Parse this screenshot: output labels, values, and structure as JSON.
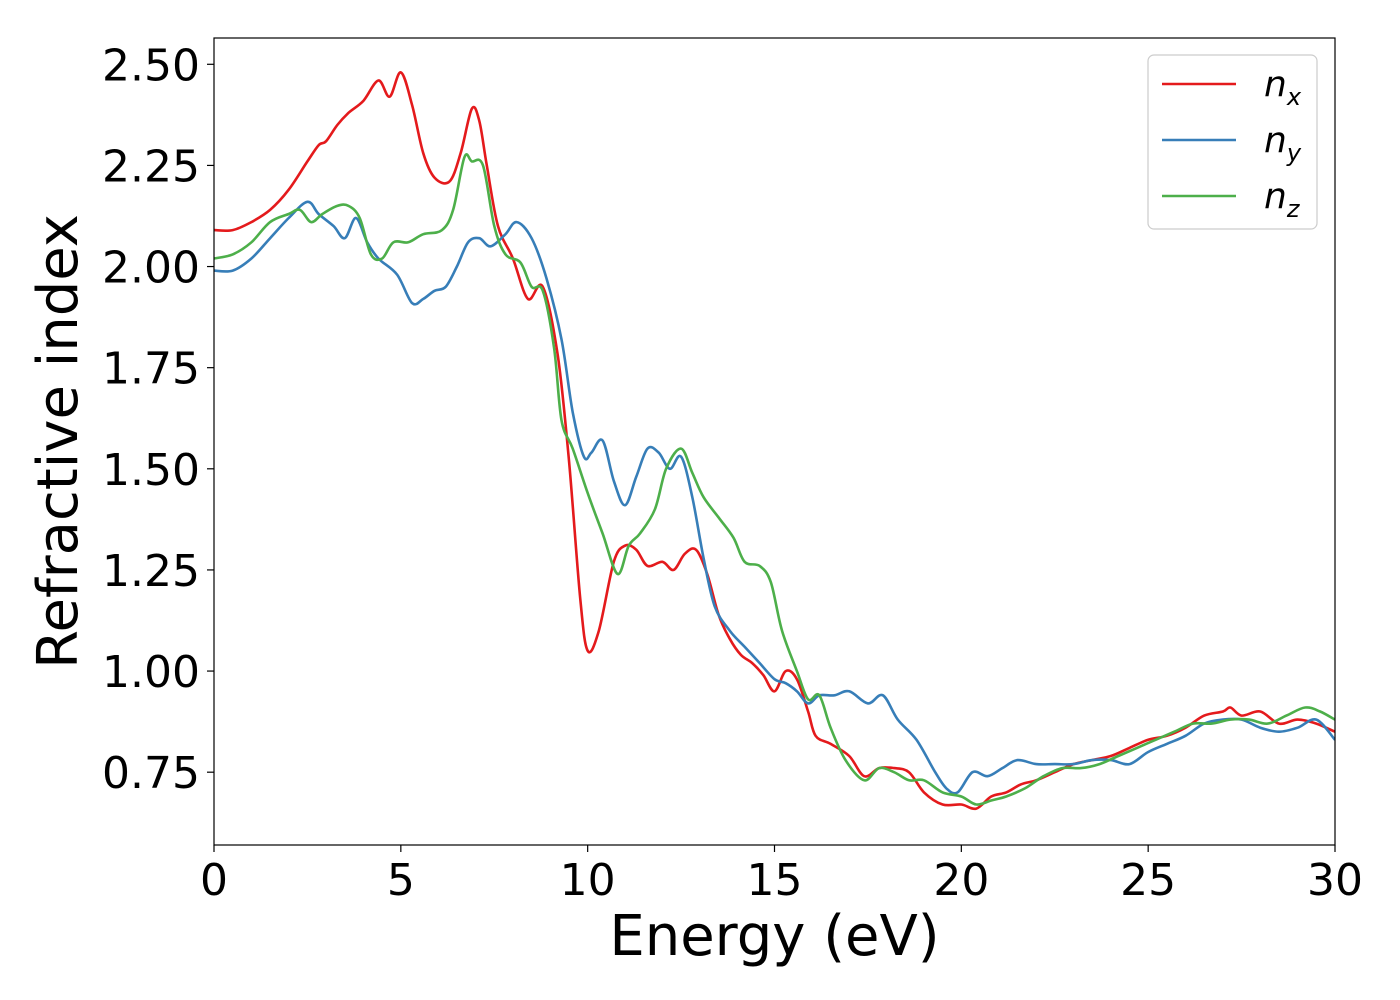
{
  "chart_data": {
    "type": "line",
    "title": "",
    "xlabel": "Energy (eV)",
    "ylabel": "Refractive index",
    "xlim": [
      0,
      30
    ],
    "ylim": [
      0.57,
      2.565
    ],
    "xticks": [
      0,
      5,
      10,
      15,
      20,
      25,
      30
    ],
    "xtick_labels": [
      "0",
      "5",
      "10",
      "15",
      "20",
      "25",
      "30"
    ],
    "yticks": [
      0.75,
      1.0,
      1.25,
      1.5,
      1.75,
      2.0,
      2.25,
      2.5
    ],
    "ytick_labels": [
      "0.75",
      "1.00",
      "1.25",
      "1.50",
      "1.75",
      "2.00",
      "2.25",
      "2.50"
    ],
    "grid": false,
    "legend_position": "top-right",
    "series": [
      {
        "name": "n_x",
        "label_base": "n",
        "label_sub": "x",
        "color": "#e41a1c",
        "points": [
          [
            0,
            2.09
          ],
          [
            0.5,
            2.09
          ],
          [
            1.0,
            2.11
          ],
          [
            1.5,
            2.14
          ],
          [
            2.0,
            2.19
          ],
          [
            2.5,
            2.26
          ],
          [
            2.8,
            2.3
          ],
          [
            3.0,
            2.31
          ],
          [
            3.3,
            2.35
          ],
          [
            3.6,
            2.38
          ],
          [
            4.0,
            2.41
          ],
          [
            4.4,
            2.46
          ],
          [
            4.7,
            2.42
          ],
          [
            5.0,
            2.48
          ],
          [
            5.3,
            2.4
          ],
          [
            5.6,
            2.28
          ],
          [
            5.9,
            2.22
          ],
          [
            6.3,
            2.21
          ],
          [
            6.6,
            2.28
          ],
          [
            6.9,
            2.39
          ],
          [
            7.1,
            2.36
          ],
          [
            7.3,
            2.25
          ],
          [
            7.6,
            2.1
          ],
          [
            8.0,
            2.02
          ],
          [
            8.4,
            1.92
          ],
          [
            8.8,
            1.95
          ],
          [
            9.2,
            1.78
          ],
          [
            9.5,
            1.52
          ],
          [
            9.8,
            1.18
          ],
          [
            10.0,
            1.05
          ],
          [
            10.3,
            1.1
          ],
          [
            10.7,
            1.27
          ],
          [
            11.0,
            1.31
          ],
          [
            11.3,
            1.3
          ],
          [
            11.6,
            1.26
          ],
          [
            12.0,
            1.27
          ],
          [
            12.3,
            1.25
          ],
          [
            12.6,
            1.29
          ],
          [
            12.9,
            1.3
          ],
          [
            13.2,
            1.24
          ],
          [
            13.5,
            1.14
          ],
          [
            13.8,
            1.08
          ],
          [
            14.1,
            1.04
          ],
          [
            14.4,
            1.02
          ],
          [
            14.7,
            0.99
          ],
          [
            15.0,
            0.95
          ],
          [
            15.3,
            1.0
          ],
          [
            15.6,
            0.98
          ],
          [
            15.9,
            0.9
          ],
          [
            16.1,
            0.84
          ],
          [
            16.5,
            0.82
          ],
          [
            17.0,
            0.79
          ],
          [
            17.4,
            0.74
          ],
          [
            17.8,
            0.76
          ],
          [
            18.2,
            0.76
          ],
          [
            18.6,
            0.75
          ],
          [
            19.0,
            0.7
          ],
          [
            19.5,
            0.67
          ],
          [
            20.0,
            0.67
          ],
          [
            20.4,
            0.66
          ],
          [
            20.8,
            0.69
          ],
          [
            21.2,
            0.7
          ],
          [
            21.6,
            0.72
          ],
          [
            22.0,
            0.73
          ],
          [
            22.5,
            0.75
          ],
          [
            23.0,
            0.77
          ],
          [
            23.5,
            0.78
          ],
          [
            24.0,
            0.79
          ],
          [
            24.5,
            0.81
          ],
          [
            25.0,
            0.83
          ],
          [
            25.5,
            0.84
          ],
          [
            26.0,
            0.86
          ],
          [
            26.5,
            0.89
          ],
          [
            27.0,
            0.9
          ],
          [
            27.2,
            0.91
          ],
          [
            27.5,
            0.89
          ],
          [
            28.0,
            0.9
          ],
          [
            28.5,
            0.87
          ],
          [
            29.0,
            0.88
          ],
          [
            29.5,
            0.87
          ],
          [
            30.0,
            0.85
          ]
        ]
      },
      {
        "name": "n_y",
        "label_base": "n",
        "label_sub": "y",
        "color": "#377eb8",
        "points": [
          [
            0,
            1.99
          ],
          [
            0.5,
            1.99
          ],
          [
            1.0,
            2.02
          ],
          [
            1.5,
            2.07
          ],
          [
            2.0,
            2.12
          ],
          [
            2.5,
            2.16
          ],
          [
            2.8,
            2.13
          ],
          [
            3.2,
            2.1
          ],
          [
            3.5,
            2.07
          ],
          [
            3.8,
            2.12
          ],
          [
            4.1,
            2.06
          ],
          [
            4.4,
            2.02
          ],
          [
            4.9,
            1.98
          ],
          [
            5.3,
            1.91
          ],
          [
            5.6,
            1.92
          ],
          [
            5.9,
            1.94
          ],
          [
            6.2,
            1.95
          ],
          [
            6.5,
            2.0
          ],
          [
            6.8,
            2.06
          ],
          [
            7.1,
            2.07
          ],
          [
            7.4,
            2.05
          ],
          [
            7.8,
            2.08
          ],
          [
            8.1,
            2.11
          ],
          [
            8.5,
            2.07
          ],
          [
            8.9,
            1.97
          ],
          [
            9.3,
            1.82
          ],
          [
            9.6,
            1.64
          ],
          [
            9.9,
            1.53
          ],
          [
            10.1,
            1.54
          ],
          [
            10.4,
            1.57
          ],
          [
            10.7,
            1.47
          ],
          [
            11.0,
            1.41
          ],
          [
            11.3,
            1.48
          ],
          [
            11.6,
            1.55
          ],
          [
            11.9,
            1.54
          ],
          [
            12.2,
            1.5
          ],
          [
            12.5,
            1.53
          ],
          [
            12.8,
            1.43
          ],
          [
            13.1,
            1.28
          ],
          [
            13.4,
            1.16
          ],
          [
            13.8,
            1.1
          ],
          [
            14.2,
            1.06
          ],
          [
            14.6,
            1.02
          ],
          [
            15.0,
            0.98
          ],
          [
            15.3,
            0.97
          ],
          [
            15.6,
            0.95
          ],
          [
            15.9,
            0.92
          ],
          [
            16.2,
            0.94
          ],
          [
            16.6,
            0.94
          ],
          [
            17.0,
            0.95
          ],
          [
            17.5,
            0.92
          ],
          [
            17.9,
            0.94
          ],
          [
            18.3,
            0.88
          ],
          [
            18.8,
            0.83
          ],
          [
            19.3,
            0.75
          ],
          [
            19.6,
            0.71
          ],
          [
            19.9,
            0.7
          ],
          [
            20.3,
            0.75
          ],
          [
            20.7,
            0.74
          ],
          [
            21.1,
            0.76
          ],
          [
            21.5,
            0.78
          ],
          [
            22.0,
            0.77
          ],
          [
            22.5,
            0.77
          ],
          [
            23.0,
            0.77
          ],
          [
            23.5,
            0.78
          ],
          [
            24.0,
            0.78
          ],
          [
            24.5,
            0.77
          ],
          [
            25.0,
            0.8
          ],
          [
            25.5,
            0.82
          ],
          [
            26.0,
            0.84
          ],
          [
            26.5,
            0.87
          ],
          [
            27.0,
            0.88
          ],
          [
            27.5,
            0.88
          ],
          [
            28.0,
            0.86
          ],
          [
            28.5,
            0.85
          ],
          [
            29.0,
            0.86
          ],
          [
            29.5,
            0.88
          ],
          [
            30.0,
            0.83
          ]
        ]
      },
      {
        "name": "n_z",
        "label_base": "n",
        "label_sub": "z",
        "color": "#4daf4a",
        "points": [
          [
            0,
            2.02
          ],
          [
            0.5,
            2.03
          ],
          [
            1.0,
            2.06
          ],
          [
            1.5,
            2.11
          ],
          [
            2.0,
            2.13
          ],
          [
            2.3,
            2.14
          ],
          [
            2.6,
            2.11
          ],
          [
            2.9,
            2.13
          ],
          [
            3.3,
            2.15
          ],
          [
            3.6,
            2.15
          ],
          [
            3.9,
            2.12
          ],
          [
            4.2,
            2.03
          ],
          [
            4.5,
            2.02
          ],
          [
            4.8,
            2.06
          ],
          [
            5.2,
            2.06
          ],
          [
            5.6,
            2.08
          ],
          [
            6.1,
            2.09
          ],
          [
            6.4,
            2.14
          ],
          [
            6.7,
            2.27
          ],
          [
            6.9,
            2.26
          ],
          [
            7.2,
            2.25
          ],
          [
            7.5,
            2.1
          ],
          [
            7.8,
            2.03
          ],
          [
            8.2,
            2.01
          ],
          [
            8.5,
            1.95
          ],
          [
            8.8,
            1.94
          ],
          [
            9.1,
            1.8
          ],
          [
            9.3,
            1.62
          ],
          [
            9.6,
            1.55
          ],
          [
            10.0,
            1.44
          ],
          [
            10.4,
            1.34
          ],
          [
            10.8,
            1.24
          ],
          [
            11.1,
            1.31
          ],
          [
            11.4,
            1.34
          ],
          [
            11.8,
            1.4
          ],
          [
            12.1,
            1.5
          ],
          [
            12.5,
            1.55
          ],
          [
            12.8,
            1.49
          ],
          [
            13.1,
            1.43
          ],
          [
            13.5,
            1.38
          ],
          [
            13.9,
            1.33
          ],
          [
            14.2,
            1.27
          ],
          [
            14.6,
            1.26
          ],
          [
            14.9,
            1.22
          ],
          [
            15.2,
            1.1
          ],
          [
            15.6,
            1.0
          ],
          [
            15.9,
            0.93
          ],
          [
            16.2,
            0.94
          ],
          [
            16.5,
            0.86
          ],
          [
            16.9,
            0.78
          ],
          [
            17.4,
            0.73
          ],
          [
            17.8,
            0.76
          ],
          [
            18.2,
            0.75
          ],
          [
            18.6,
            0.73
          ],
          [
            19.0,
            0.73
          ],
          [
            19.5,
            0.7
          ],
          [
            20.0,
            0.69
          ],
          [
            20.4,
            0.67
          ],
          [
            20.8,
            0.68
          ],
          [
            21.2,
            0.69
          ],
          [
            21.7,
            0.71
          ],
          [
            22.2,
            0.74
          ],
          [
            22.7,
            0.76
          ],
          [
            23.2,
            0.76
          ],
          [
            23.7,
            0.77
          ],
          [
            24.2,
            0.79
          ],
          [
            24.7,
            0.81
          ],
          [
            25.2,
            0.83
          ],
          [
            25.7,
            0.85
          ],
          [
            26.2,
            0.87
          ],
          [
            26.7,
            0.87
          ],
          [
            27.2,
            0.88
          ],
          [
            27.7,
            0.88
          ],
          [
            28.2,
            0.87
          ],
          [
            28.7,
            0.89
          ],
          [
            29.2,
            0.91
          ],
          [
            29.6,
            0.9
          ],
          [
            30.0,
            0.88
          ]
        ]
      }
    ]
  }
}
